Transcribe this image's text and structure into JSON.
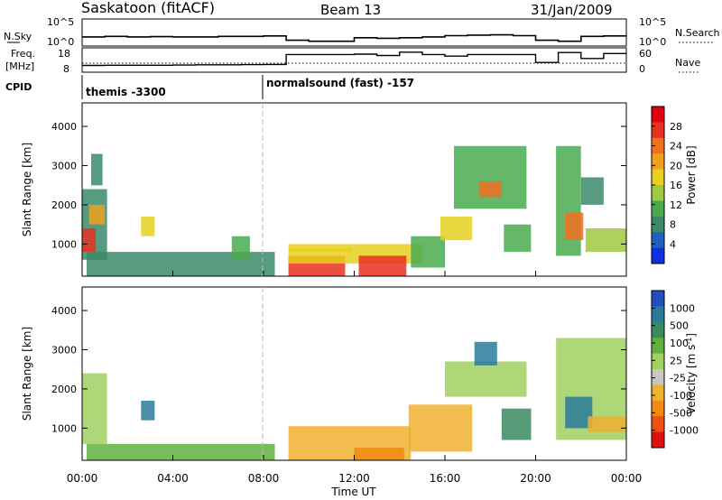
{
  "header": {
    "station": "Saskatoon (fitACF)",
    "beam": "Beam 13",
    "date": "31/Jan/2009"
  },
  "top_panels": {
    "nsky_label": "N.Sky",
    "nsky_ticks": [
      "10^5",
      "10^0"
    ],
    "nsearch_label": "N.Search",
    "freq_label_1": "Freq.",
    "freq_label_2": "[MHz]",
    "freq_ticks": [
      "18",
      "8"
    ],
    "nave_label": "Nave",
    "nave_ticks": [
      "60",
      "0"
    ],
    "cpid_label": "CPID",
    "cpid_modes": [
      "themis -3300",
      "normalsound (fast) -157"
    ]
  },
  "colors": {
    "power_scale": [
      "#1030e0",
      "#2060c0",
      "#3a8a6a",
      "#4aaa50",
      "#a0c840",
      "#e8d020",
      "#f0a020",
      "#f07020",
      "#e83020",
      "#e00010"
    ],
    "velocity_scale": [
      "#2050c0",
      "#2a7a9a",
      "#3a8a60",
      "#60b040",
      "#a0d060",
      "#c8c8c0",
      "#f0b030",
      "#f08a10",
      "#f05010",
      "#e01010"
    ]
  },
  "chart_data": [
    {
      "type": "line",
      "title": "N.Sky / N.Search",
      "x": [
        "00:00",
        "01:00",
        "02:00",
        "03:00",
        "04:00",
        "05:00",
        "06:00",
        "07:00",
        "08:00",
        "09:00",
        "10:00",
        "11:00",
        "12:00",
        "13:00",
        "14:00",
        "15:00",
        "16:00",
        "17:00",
        "18:00",
        "19:00",
        "20:00",
        "21:00",
        "22:00",
        "23:00",
        "24:00"
      ],
      "series": [
        {
          "name": "N.Sky",
          "values": [
            30,
            40,
            30,
            35,
            30,
            30,
            40,
            40,
            50,
            5,
            3,
            3,
            20,
            15,
            20,
            30,
            60,
            80,
            90,
            60,
            5,
            3,
            40,
            50,
            40
          ]
        },
        {
          "name": "N.Search",
          "values": [
            0,
            0,
            0,
            0,
            0,
            0,
            0,
            0,
            0,
            0,
            0,
            0,
            0,
            0,
            0,
            0,
            0,
            0,
            0,
            0,
            0,
            0,
            0,
            0,
            0
          ]
        }
      ],
      "ylim": [
        1,
        100000
      ],
      "yscale": "log"
    },
    {
      "type": "line",
      "title": "Freq. [MHz] / Nave",
      "x": [
        "00:00",
        "01:00",
        "02:00",
        "03:00",
        "04:00",
        "05:00",
        "06:00",
        "07:00",
        "08:00",
        "09:00",
        "10:00",
        "11:00",
        "12:00",
        "13:00",
        "14:00",
        "15:00",
        "16:00",
        "17:00",
        "18:00",
        "19:00",
        "20:00",
        "21:00",
        "22:00",
        "23:00",
        "24:00"
      ],
      "series": [
        {
          "name": "Freq.",
          "values": [
            10.5,
            10.6,
            10.6,
            10.6,
            10.7,
            10.8,
            10.8,
            10.9,
            11.0,
            16.0,
            16.0,
            16.0,
            16.2,
            15.5,
            17.2,
            16.0,
            15.2,
            16.0,
            16.0,
            16.0,
            12.0,
            17.0,
            14.0,
            16.5,
            16.5
          ]
        },
        {
          "name": "Nave",
          "values": [
            23,
            23,
            23,
            23,
            23,
            23,
            23,
            23,
            23,
            23,
            23,
            23,
            23,
            23,
            23,
            23,
            23,
            23,
            23,
            23,
            23,
            23,
            23,
            23,
            23
          ]
        }
      ],
      "ylim": [
        8,
        18
      ]
    },
    {
      "type": "heatmap",
      "title": "Power",
      "xlabel": "Time UT",
      "ylabel": "Slant Range [km]",
      "x_ticks": [
        "00:00",
        "04:00",
        "08:00",
        "12:00",
        "16:00",
        "20:00",
        "00:00"
      ],
      "xlim": [
        0,
        24
      ],
      "ylim": [
        180,
        4600
      ],
      "y_ticks": [
        1000,
        2000,
        3000,
        4000
      ],
      "colorbar_label": "Power [dB]",
      "colorbar_ticks": [
        4,
        8,
        12,
        16,
        20,
        24,
        28
      ],
      "regions": [
        {
          "t0": 0.0,
          "t1": 1.1,
          "r0": 600,
          "r1": 2400,
          "level": 8
        },
        {
          "t0": 0.0,
          "t1": 0.6,
          "r0": 800,
          "r1": 1400,
          "level": 28
        },
        {
          "t0": 0.3,
          "t1": 1.0,
          "r0": 1500,
          "r1": 2000,
          "level": 20
        },
        {
          "t0": 0.4,
          "t1": 0.9,
          "r0": 2500,
          "r1": 3300,
          "level": 8
        },
        {
          "t0": 0.2,
          "t1": 8.5,
          "r0": 180,
          "r1": 800,
          "level": 6
        },
        {
          "t0": 2.6,
          "t1": 3.2,
          "r0": 1200,
          "r1": 1700,
          "level": 16
        },
        {
          "t0": 6.6,
          "t1": 7.4,
          "r0": 600,
          "r1": 1200,
          "level": 10
        },
        {
          "t0": 9.1,
          "t1": 11.9,
          "r0": 800,
          "r1": 900,
          "level": 16
        },
        {
          "t0": 9.1,
          "t1": 11.6,
          "r0": 180,
          "r1": 700,
          "level": 28
        },
        {
          "t0": 9.1,
          "t1": 15.0,
          "r0": 500,
          "r1": 1000,
          "level": 16
        },
        {
          "t0": 12.2,
          "t1": 14.3,
          "r0": 180,
          "r1": 700,
          "level": 28
        },
        {
          "t0": 14.5,
          "t1": 16.0,
          "r0": 400,
          "r1": 1200,
          "level": 12
        },
        {
          "t0": 15.8,
          "t1": 17.2,
          "r0": 1100,
          "r1": 1700,
          "level": 16
        },
        {
          "t0": 16.4,
          "t1": 19.6,
          "r0": 1900,
          "r1": 3500,
          "level": 12
        },
        {
          "t0": 17.5,
          "t1": 18.5,
          "r0": 2200,
          "r1": 2600,
          "level": 24
        },
        {
          "t0": 18.6,
          "t1": 19.8,
          "r0": 800,
          "r1": 1500,
          "level": 12
        },
        {
          "t0": 20.9,
          "t1": 22.0,
          "r0": 700,
          "r1": 3500,
          "level": 10
        },
        {
          "t0": 21.3,
          "t1": 22.1,
          "r0": 1100,
          "r1": 1800,
          "level": 24
        },
        {
          "t0": 22.2,
          "t1": 24.0,
          "r0": 800,
          "r1": 1400,
          "level": 14
        },
        {
          "t0": 22.0,
          "t1": 23.0,
          "r0": 2000,
          "r1": 2700,
          "level": 8
        }
      ]
    },
    {
      "type": "heatmap",
      "title": "Velocity",
      "xlabel": "Time UT",
      "ylabel": "Slant Range [km]",
      "x_ticks": [
        "00:00",
        "04:00",
        "08:00",
        "12:00",
        "16:00",
        "20:00",
        "00:00"
      ],
      "xlim": [
        0,
        24
      ],
      "ylim": [
        180,
        4600
      ],
      "y_ticks": [
        1000,
        2000,
        3000,
        4000
      ],
      "colorbar_label": "Velocity [m s",
      "colorbar_unit_sup": "-1",
      "colorbar_unit_end": "]",
      "colorbar_ticks": [
        1000,
        500,
        100,
        25,
        -25,
        -100,
        -500,
        -1000
      ],
      "regions": [
        {
          "t0": 0.0,
          "t1": 1.1,
          "r0": 600,
          "r1": 2400,
          "level": 0
        },
        {
          "t0": 0.2,
          "t1": 8.5,
          "r0": 180,
          "r1": 600,
          "level": 50
        },
        {
          "t0": 2.6,
          "t1": 3.2,
          "r0": 1200,
          "r1": 1700,
          "level": 300
        },
        {
          "t0": 9.1,
          "t1": 14.5,
          "r0": 180,
          "r1": 1050,
          "level": -150
        },
        {
          "t0": 12.0,
          "t1": 14.2,
          "r0": 180,
          "r1": 500,
          "level": -400
        },
        {
          "t0": 14.4,
          "t1": 17.2,
          "r0": 400,
          "r1": 1600,
          "level": -60
        },
        {
          "t0": 16.0,
          "t1": 19.6,
          "r0": 1800,
          "r1": 2700,
          "level": 0
        },
        {
          "t0": 17.3,
          "t1": 18.3,
          "r0": 2600,
          "r1": 3200,
          "level": 200
        },
        {
          "t0": 18.5,
          "t1": 19.8,
          "r0": 700,
          "r1": 1500,
          "level": 60
        },
        {
          "t0": 20.9,
          "t1": 24.0,
          "r0": 700,
          "r1": 3300,
          "level": 0
        },
        {
          "t0": 21.3,
          "t1": 22.5,
          "r0": 1000,
          "r1": 1800,
          "level": 300
        },
        {
          "t0": 22.3,
          "t1": 24.0,
          "r0": 900,
          "r1": 1300,
          "level": -60
        }
      ]
    }
  ]
}
